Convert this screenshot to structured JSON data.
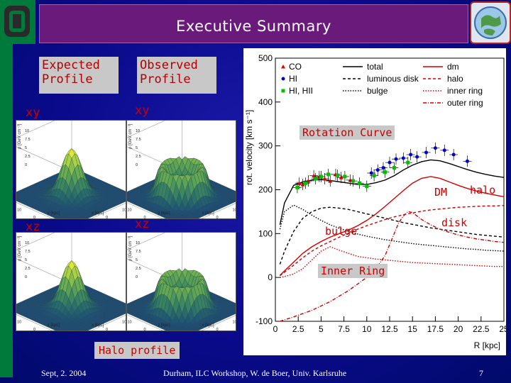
{
  "slide": {
    "title": "Executive Summary",
    "expected_label": "Expected\nProfile",
    "observed_label": "Observed\nProfile",
    "xy_left": "xy",
    "xy_right": "xy",
    "xz_left": "xz",
    "xz_right": "xz",
    "halo_profile": "Halo profile",
    "rotation_curve": "Rotation Curve"
  },
  "surface_plot": {
    "zlabel": "ρ [GeV cm⁻³]",
    "xlabel": "x [kpc]",
    "ylabel": "y [kpc]",
    "zlabel_xz": "z [kpc]",
    "zticks": [
      "10",
      "7.5",
      "5",
      "2.5",
      "0"
    ],
    "ticks_a": [
      "20",
      "10",
      "0",
      "-10",
      "-20"
    ],
    "ticks_b": [
      "-20",
      "-10",
      "0",
      "10",
      "20"
    ]
  },
  "chart_data": {
    "type": "line",
    "ylabel": "rot. velocity [km s⁻¹]",
    "xlabel": "R [kpc]",
    "xlim": [
      0,
      25
    ],
    "ylim": [
      -100,
      500
    ],
    "xticks": [
      "0",
      "2.5",
      "5",
      "7.5",
      "10",
      "12.5",
      "15",
      "17.5",
      "20",
      "22.5",
      "25"
    ],
    "yticks": [
      "500",
      "400",
      "300",
      "200",
      "100",
      "0",
      "-100"
    ],
    "legend": [
      {
        "name": "CO",
        "marker": "triangle",
        "color": "#e00000"
      },
      {
        "name": "HI",
        "marker": "circle",
        "color": "#0000d0"
      },
      {
        "name": "HI, HII",
        "marker": "square",
        "color": "#00c000"
      },
      {
        "name": "total",
        "style": "solid",
        "color": "#000000"
      },
      {
        "name": "luminous disk",
        "style": "dashed",
        "color": "#000000"
      },
      {
        "name": "bulge",
        "style": "dotted",
        "color": "#000000"
      },
      {
        "name": "dm",
        "style": "solid",
        "color": "#d00000"
      },
      {
        "name": "halo",
        "style": "dashed",
        "color": "#d00000"
      },
      {
        "name": "inner ring",
        "style": "dotted",
        "color": "#d00000"
      },
      {
        "name": "outer ring",
        "style": "dashdot",
        "color": "#d00000"
      }
    ],
    "series": [
      {
        "name": "total",
        "x": [
          0.5,
          1,
          2,
          3,
          4,
          5,
          6,
          7,
          8,
          9,
          10,
          11,
          12,
          13,
          14,
          15,
          16,
          17,
          18,
          19,
          20,
          21,
          22,
          23,
          24,
          25
        ],
        "y": [
          120,
          170,
          210,
          218,
          222,
          223,
          221,
          218,
          215,
          212,
          212,
          216,
          222,
          232,
          245,
          256,
          264,
          268,
          266,
          260,
          253,
          246,
          240,
          235,
          231,
          228
        ]
      },
      {
        "name": "luminous disk",
        "x": [
          0.5,
          1,
          2,
          3,
          4,
          5,
          6,
          7,
          8,
          9,
          10,
          11,
          12,
          13,
          14,
          15,
          16,
          17,
          18,
          19,
          20,
          21,
          22,
          23,
          24,
          25
        ],
        "y": [
          30,
          60,
          105,
          135,
          150,
          158,
          160,
          158,
          155,
          150,
          145,
          140,
          135,
          130,
          125,
          121,
          117,
          113,
          110,
          107,
          104,
          101,
          98,
          96,
          94,
          92
        ]
      },
      {
        "name": "bulge",
        "x": [
          0.5,
          1,
          2,
          3,
          4,
          5,
          6,
          7,
          8,
          9,
          10,
          11,
          12,
          13,
          14,
          15,
          16,
          17,
          18,
          19,
          20,
          21,
          22,
          23,
          24,
          25
        ],
        "y": [
          110,
          150,
          165,
          155,
          142,
          130,
          120,
          112,
          105,
          99,
          94,
          90,
          86,
          83,
          80,
          77,
          75,
          73,
          71,
          69,
          67,
          65,
          64,
          62,
          61,
          60
        ]
      },
      {
        "name": "dm",
        "x": [
          0.5,
          1,
          2,
          3,
          4,
          5,
          6,
          7,
          8,
          9,
          10,
          11,
          12,
          13,
          14,
          15,
          16,
          17,
          18,
          19,
          20,
          21,
          22,
          23,
          24,
          25
        ],
        "y": [
          5,
          15,
          35,
          55,
          70,
          82,
          92,
          100,
          108,
          118,
          130,
          145,
          162,
          180,
          198,
          215,
          226,
          230,
          226,
          218,
          210,
          203,
          197,
          192,
          188,
          184
        ]
      },
      {
        "name": "halo",
        "x": [
          0.5,
          1,
          2,
          3,
          4,
          5,
          6,
          7,
          8,
          9,
          10,
          11,
          12,
          13,
          14,
          15,
          16,
          17,
          18,
          19,
          20,
          21,
          22,
          23,
          24,
          25
        ],
        "y": [
          4,
          12,
          28,
          45,
          60,
          72,
          82,
          92,
          101,
          110,
          118,
          125,
          132,
          138,
          143,
          147,
          151,
          154,
          156,
          158,
          160,
          161,
          162,
          163,
          163,
          164
        ]
      },
      {
        "name": "inner ring",
        "x": [
          0.5,
          1,
          2,
          3,
          4,
          5,
          6,
          7,
          8,
          9,
          10,
          11,
          12,
          13,
          14,
          15,
          16,
          17,
          18,
          19,
          20,
          21,
          22,
          23,
          24,
          25
        ],
        "y": [
          0,
          2,
          8,
          20,
          40,
          60,
          70,
          62,
          55,
          48,
          45,
          42,
          40,
          38,
          36,
          34,
          33,
          32,
          31,
          30,
          29,
          28,
          27,
          26,
          25,
          25
        ]
      },
      {
        "name": "outer ring",
        "x": [
          0.5,
          2,
          4,
          6,
          8,
          10,
          11,
          12,
          12.5,
          13,
          13.5,
          14,
          14.5,
          15,
          15.5,
          16,
          17,
          18,
          19,
          20,
          21,
          22,
          23,
          24,
          25
        ],
        "y": [
          -100,
          -90,
          -75,
          -55,
          -30,
          0,
          20,
          50,
          75,
          100,
          125,
          140,
          150,
          148,
          140,
          132,
          120,
          110,
          103,
          97,
          92,
          88,
          85,
          82,
          80
        ]
      }
    ],
    "observations": {
      "CO": {
        "x": [
          2.6,
          3.0,
          3.6,
          4.2,
          4.8,
          5.4,
          6.0,
          6.6,
          7.2,
          8.2
        ],
        "y": [
          215,
          212,
          220,
          232,
          230,
          225,
          220,
          235,
          228,
          222
        ]
      },
      "HI": {
        "x": [
          10.5,
          11.2,
          11.8,
          12.5,
          13.2,
          14.0,
          14.8,
          15.5,
          16.5,
          17.5,
          18.5,
          19.5,
          21.0
        ],
        "y": [
          238,
          245,
          250,
          262,
          270,
          272,
          280,
          275,
          285,
          295,
          290,
          280,
          265
        ]
      },
      "HI, HII": {
        "x": [
          2.4,
          3.3,
          4.4,
          5.0,
          5.8,
          6.8,
          7.6,
          8.5,
          9.2,
          10.0,
          10.8,
          12.0,
          13.0,
          14.5
        ],
        "y": [
          205,
          215,
          225,
          230,
          235,
          233,
          230,
          220,
          215,
          208,
          232,
          240,
          250,
          262
        ]
      }
    }
  },
  "annotations": {
    "dm_label": "DM",
    "halo_label": "halo",
    "disk_label": "disk",
    "bulge_label": "bulge",
    "inner_ring_label": "Inner Ring",
    "outer_ring_label": "Outer Ring"
  },
  "footer": {
    "date": "Sept, 2. 2004",
    "center": "Durham, ILC Workshop, W. de Boer, Univ. Karlsruhe",
    "page": "7"
  },
  "colors": {
    "background": "#0a0a8c",
    "title_box": "#6a1a7a",
    "accent_red": "#c80000",
    "left_bar": "#007a3a"
  }
}
